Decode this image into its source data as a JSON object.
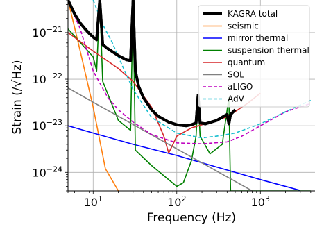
{
  "chart_data": {
    "type": "line",
    "title": "",
    "xlabel": "Frequency (Hz)",
    "ylabel": "Strain (/√Hz)",
    "xscale": "log",
    "yscale": "log",
    "xlim": [
      5,
      4500
    ],
    "ylim": [
      4e-25,
      5e-21
    ],
    "grid": true,
    "legend_position": "top-right",
    "x_ticks": [
      {
        "value": 10,
        "base": "10",
        "exp": "1"
      },
      {
        "value": 100,
        "base": "10",
        "exp": "2"
      },
      {
        "value": 1000,
        "base": "10",
        "exp": "3"
      }
    ],
    "y_ticks": [
      {
        "value": 1e-24,
        "base": "10",
        "exp": "−24"
      },
      {
        "value": 1e-23,
        "base": "10",
        "exp": "−23"
      },
      {
        "value": 1e-22,
        "base": "10",
        "exp": "−22"
      },
      {
        "value": 1e-21,
        "base": "10",
        "exp": "−21"
      }
    ],
    "series": [
      {
        "name": "KAGRA total",
        "color": "#000000",
        "style": "solid",
        "width": 4,
        "x": [
          5,
          6,
          7,
          8,
          9,
          10,
          11,
          12,
          13,
          15,
          20,
          25,
          28,
          30,
          32,
          35,
          40,
          50,
          60,
          80,
          100,
          130,
          150,
          170,
          180,
          190,
          220,
          300,
          400,
          420,
          440,
          500
        ],
        "y": [
          5e-21,
          2.5e-21,
          1.6e-21,
          1.2e-21,
          9.5e-22,
          8e-22,
          7e-22,
          5e-21,
          5.5e-22,
          4.5e-22,
          3.2e-22,
          2.6e-22,
          2.5e-22,
          5e-21,
          1.5e-22,
          7e-23,
          4e-23,
          2.2e-23,
          1.6e-23,
          1.2e-23,
          1.05e-23,
          1e-23,
          1.05e-23,
          1.15e-23,
          4.5e-23,
          1.15e-23,
          1.1e-23,
          1.3e-23,
          1.75e-23,
          1.1e-23,
          1.75e-23,
          2.2e-23
        ]
      },
      {
        "name": "seismic",
        "color": "#ff7f0e",
        "style": "solid",
        "width": 1.6,
        "x": [
          5,
          7,
          10,
          14,
          20
        ],
        "y": [
          5e-21,
          4e-22,
          2.5e-23,
          1.2e-24,
          4e-25
        ]
      },
      {
        "name": "mirror thermal",
        "color": "#0000ff",
        "style": "solid",
        "width": 1.6,
        "x": [
          5,
          10,
          30,
          100,
          300,
          1000,
          3000
        ],
        "y": [
          1e-23,
          7e-24,
          4e-24,
          2.3e-24,
          1.3e-24,
          7e-25,
          4.1e-25
        ]
      },
      {
        "name": "suspension thermal",
        "color": "#008000",
        "style": "solid",
        "width": 1.6,
        "x": [
          5,
          10,
          11,
          12,
          13,
          20,
          28,
          30,
          32,
          50,
          100,
          120,
          150,
          170,
          180,
          190,
          250,
          350,
          420,
          440,
          500,
          720,
          1100,
          1500,
          4000
        ],
        "y": [
          1.2e-21,
          3e-22,
          1.5e-22,
          5e-21,
          9e-23,
          1.3e-23,
          8e-24,
          5e-21,
          3e-24,
          1.4e-24,
          5e-25,
          6e-25,
          1.8e-24,
          6e-24,
          4.5e-23,
          6e-24,
          2.5e-24,
          4e-24,
          4e-23,
          4e-25,
          4e-25,
          4e-25,
          4e-25,
          4e-25,
          4e-25
        ]
      },
      {
        "name": "quantum",
        "color": "#d62728",
        "style": "solid",
        "width": 1.6,
        "x": [
          5,
          10,
          20,
          30,
          50,
          70,
          80,
          90,
          100,
          150,
          200,
          400,
          700,
          1000
        ],
        "y": [
          1e-21,
          4e-22,
          1.7e-22,
          9e-23,
          2.5e-23,
          6e-24,
          2.6e-24,
          4e-24,
          6e-24,
          9e-24,
          1.05e-23,
          1.55e-23,
          3e-23,
          5e-23
        ]
      },
      {
        "name": "SQL",
        "color": "#808080",
        "style": "solid",
        "width": 1.6,
        "x": [
          5,
          10,
          100,
          1000
        ],
        "y": [
          6.5e-23,
          3.2e-23,
          3.2e-24,
          3.2e-25
        ]
      },
      {
        "name": "aLIGO",
        "color": "#bf00bf",
        "style": "dashed",
        "width": 1.6,
        "x": [
          5,
          7,
          10,
          15,
          20,
          30,
          50,
          100,
          200,
          400,
          600,
          1000,
          2000,
          4000
        ],
        "y": [
          5e-21,
          1.2e-21,
          1.5e-22,
          4e-23,
          2.2e-23,
          1.2e-23,
          6.5e-24,
          4.3e-24,
          4.1e-24,
          4.5e-24,
          6e-24,
          1e-23,
          2e-23,
          3e-23
        ]
      },
      {
        "name": "AdV",
        "color": "#17becf",
        "style": "dashed",
        "width": 1.6,
        "x": [
          10,
          13,
          17,
          20,
          30,
          50,
          100,
          200,
          300,
          500,
          1000,
          2000,
          4000
        ],
        "y": [
          5e-21,
          1.5e-21,
          6e-22,
          3e-22,
          6e-23,
          1.5e-23,
          7e-24,
          5.5e-24,
          6e-24,
          7e-24,
          1.1e-23,
          2e-23,
          3.5e-23
        ]
      }
    ]
  }
}
